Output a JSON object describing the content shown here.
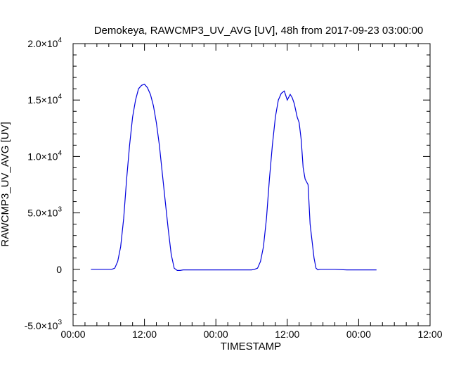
{
  "chart_data": {
    "type": "line",
    "title": "Demokeya, RAWCMP3_UV_AVG [UV], 48h from  2017-09-23 03:00:00",
    "xlabel": "TIMESTAMP",
    "ylabel": "RAWCMP3_UV_AVG [UV]",
    "xlim": [
      "00:00",
      "12:00"
    ],
    "ylim": [
      -5000,
      20000
    ],
    "x_tick_labels": [
      "00:00",
      "12:00",
      "00:00",
      "12:00",
      "00:00",
      "12:00"
    ],
    "y_ticks": [
      {
        "value": -5000,
        "mantissa": "-5.0",
        "exponent": "3"
      },
      {
        "value": 0,
        "mantissa": "0",
        "exponent": ""
      },
      {
        "value": 5000,
        "mantissa": "5.0",
        "exponent": "3"
      },
      {
        "value": 10000,
        "mantissa": "1.0",
        "exponent": "4"
      },
      {
        "value": 15000,
        "mantissa": "1.5",
        "exponent": "4"
      },
      {
        "value": 20000,
        "mantissa": "2.0",
        "exponent": "4"
      }
    ],
    "grid": false,
    "line_color": "#0000dd",
    "series": [
      {
        "x": [
          "2017-09-23 03:00",
          "2017-09-23 05:00",
          "2017-09-23 06:30",
          "2017-09-23 07:00",
          "2017-09-23 07:30",
          "2017-09-23 08:00",
          "2017-09-23 08:30",
          "2017-09-23 09:00",
          "2017-09-23 09:30",
          "2017-09-23 10:00",
          "2017-09-23 10:30",
          "2017-09-23 11:00",
          "2017-09-23 11:30",
          "2017-09-23 12:00",
          "2017-09-23 12:30",
          "2017-09-23 13:00",
          "2017-09-23 13:30",
          "2017-09-23 14:00",
          "2017-09-23 14:30",
          "2017-09-23 15:00",
          "2017-09-23 15:30",
          "2017-09-23 16:00",
          "2017-09-23 16:30",
          "2017-09-23 17:00",
          "2017-09-23 17:30",
          "2017-09-23 18:00",
          "2017-09-23 18:30",
          "2017-09-23 20:00",
          "2017-09-24 00:00",
          "2017-09-24 04:00",
          "2017-09-24 06:00",
          "2017-09-24 06:30",
          "2017-09-24 07:00",
          "2017-09-24 07:30",
          "2017-09-24 08:00",
          "2017-09-24 08:30",
          "2017-09-24 09:00",
          "2017-09-24 09:30",
          "2017-09-24 10:00",
          "2017-09-24 10:30",
          "2017-09-24 11:00",
          "2017-09-24 11:30",
          "2017-09-24 12:00",
          "2017-09-24 12:30",
          "2017-09-24 12:50",
          "2017-09-24 13:10",
          "2017-09-24 13:40",
          "2017-09-24 14:00",
          "2017-09-24 14:20",
          "2017-09-24 14:40",
          "2017-09-24 15:00",
          "2017-09-24 15:30",
          "2017-09-24 15:50",
          "2017-09-24 16:10",
          "2017-09-24 16:30",
          "2017-09-24 16:50",
          "2017-09-24 17:10",
          "2017-09-24 17:30",
          "2017-09-24 18:00",
          "2017-09-24 18:20",
          "2017-09-24 18:40",
          "2017-09-24 20:00",
          "2017-09-24 22:00",
          "2017-09-24 23:00",
          "2017-09-25 01:00",
          "2017-09-25 03:00"
        ],
        "y": [
          0,
          0,
          0,
          100,
          700,
          2000,
          4500,
          8000,
          11000,
          13500,
          15000,
          16000,
          16300,
          16400,
          16100,
          15500,
          14500,
          13000,
          11000,
          8500,
          6000,
          3500,
          1300,
          100,
          -100,
          -100,
          -50,
          -50,
          -50,
          -50,
          -50,
          0,
          100,
          700,
          2000,
          4500,
          8000,
          11000,
          13500,
          15000,
          15600,
          15800,
          15000,
          15500,
          15200,
          14700,
          13500,
          13000,
          11500,
          9000,
          8000,
          7500,
          4000,
          2500,
          1000,
          100,
          -50,
          0,
          0,
          0,
          0,
          0,
          -50,
          -50,
          -50,
          -50
        ]
      }
    ]
  }
}
